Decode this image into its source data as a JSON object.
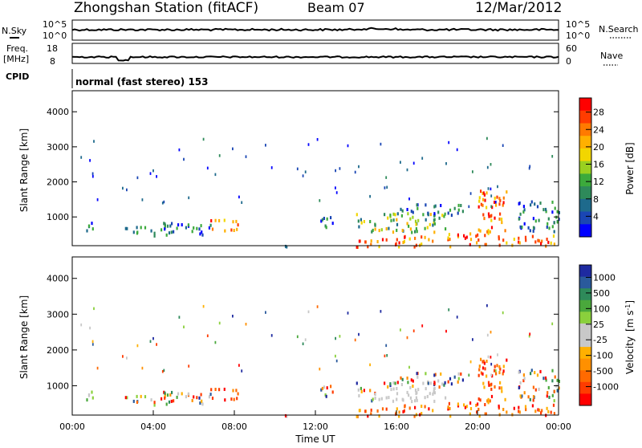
{
  "header": {
    "station": "Zhongshan Station (fitACF)",
    "beam": "Beam 07",
    "date": "12/Mar/2012"
  },
  "top_strips": {
    "nsky_label": "N.Sky",
    "nsky_ticks": [
      "10^5",
      "10^0"
    ],
    "nsearch_label": "N.Search",
    "nsearch_ticks": [
      "10^5",
      "10^0"
    ],
    "freq_label": "Freq.",
    "freq_unit": "[MHz]",
    "freq_ticks": [
      "18",
      "8"
    ],
    "nave_label": "Nave",
    "nave_ticks": [
      "60",
      "0"
    ],
    "cpid_label": "CPID",
    "cpid_text": "normal (fast stereo) 153"
  },
  "chart_data": [
    {
      "type": "heatmap",
      "ylabel": "Slant Range [km]",
      "y_ticks": [
        "4000",
        "3000",
        "2000",
        "1000"
      ],
      "ylim": [
        180,
        4600
      ],
      "xlim": [
        "00:00",
        "24:00"
      ],
      "colorbar": {
        "title": "Power [dB]",
        "ticks": [
          "28",
          "24",
          "20",
          "16",
          "12",
          "8",
          "4"
        ],
        "colors": [
          "#ff0000",
          "#ff3c00",
          "#ff7a00",
          "#ffb000",
          "#f2d600",
          "#9ad020",
          "#3caa3c",
          "#2e8a5a",
          "#1e6a8c",
          "#1a46b4",
          "#0000ff"
        ]
      }
    },
    {
      "type": "heatmap",
      "ylabel": "Slant Range [km]",
      "y_ticks": [
        "4000",
        "3000",
        "2000",
        "1000"
      ],
      "ylim": [
        180,
        4600
      ],
      "xlim": [
        "00:00",
        "24:00"
      ],
      "xlabel": "Time UT",
      "x_ticks": [
        "00:00",
        "04:00",
        "08:00",
        "12:00",
        "16:00",
        "20:00",
        "00:00"
      ],
      "colorbar": {
        "title": "Velocity",
        "unit": "[m s",
        "unit_sup": "-1",
        "unit_end": "]",
        "ticks": [
          "1000",
          "500",
          "100",
          "25",
          "-25",
          "-100",
          "-500",
          "-1000"
        ],
        "colors": [
          "#1e2aa0",
          "#2a5a9c",
          "#2e8a5a",
          "#4aa83c",
          "#8ad03c",
          "#c8c8c8",
          "#c8c8c8",
          "#ffb000",
          "#ff9000",
          "#ff6a00",
          "#ff3c00",
          "#ff0000"
        ]
      }
    }
  ]
}
